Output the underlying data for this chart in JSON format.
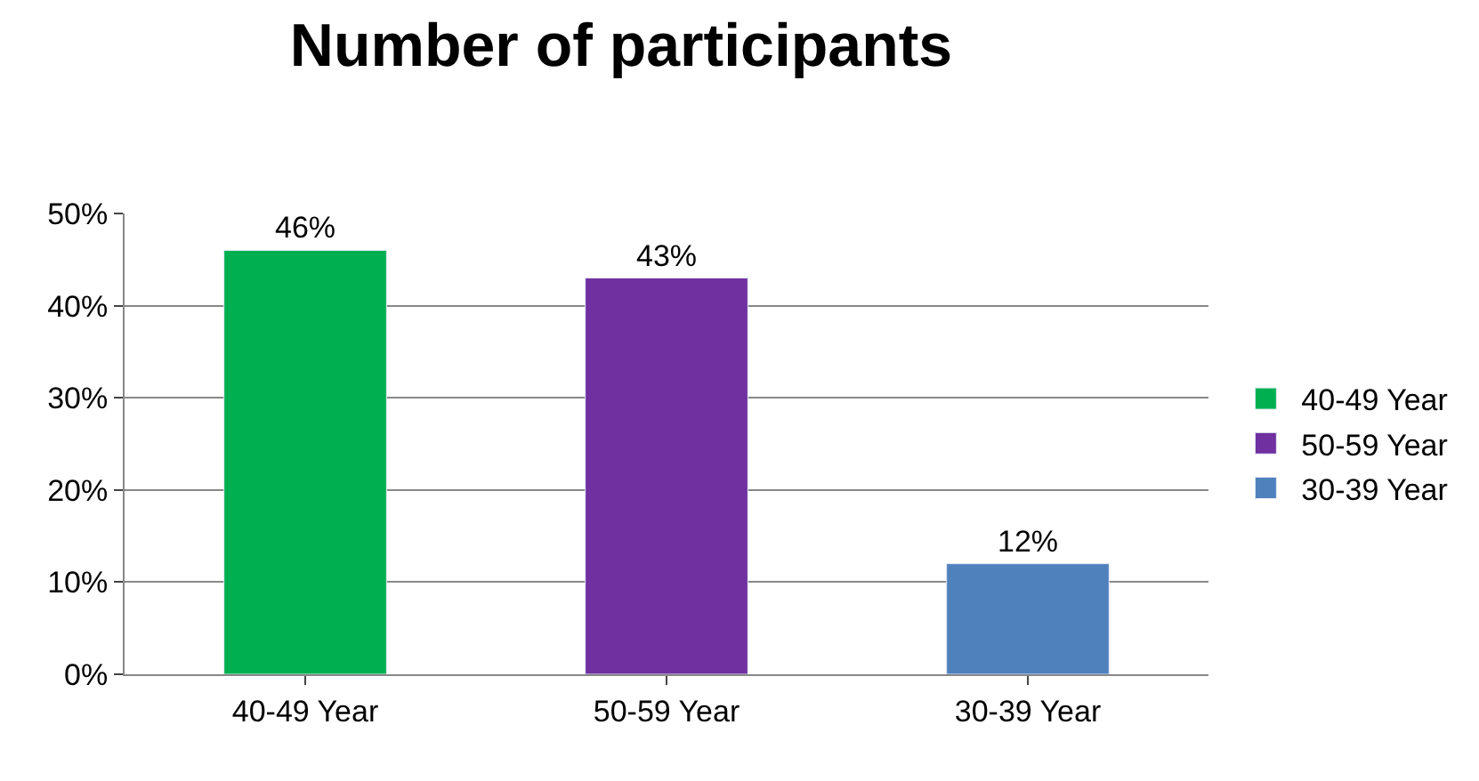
{
  "chart_data": {
    "type": "bar",
    "title": "Number of participants",
    "categories": [
      "40-49 Year",
      "50-59 Year",
      "30-39 Year"
    ],
    "series": [
      {
        "name": "40-49 Year",
        "color": "#00b050",
        "values": [
          46,
          null,
          null
        ],
        "value_labels": [
          "46%",
          null,
          null
        ]
      },
      {
        "name": "50-59 Year",
        "color": "#7030a0",
        "values": [
          null,
          43,
          null
        ],
        "value_labels": [
          null,
          "43%",
          null
        ]
      },
      {
        "name": "30-39 Year",
        "color": "#4f81bd",
        "values": [
          null,
          null,
          12
        ],
        "value_labels": [
          null,
          null,
          "12%"
        ]
      }
    ],
    "ylim": [
      0,
      50
    ],
    "yticks": [
      {
        "value": 0,
        "label": "0%"
      },
      {
        "value": 10,
        "label": "10%"
      },
      {
        "value": 20,
        "label": "20%"
      },
      {
        "value": 30,
        "label": "30%"
      },
      {
        "value": 40,
        "label": "40%"
      },
      {
        "value": 50,
        "label": "50%"
      }
    ],
    "grid": "y",
    "legend": "right"
  }
}
